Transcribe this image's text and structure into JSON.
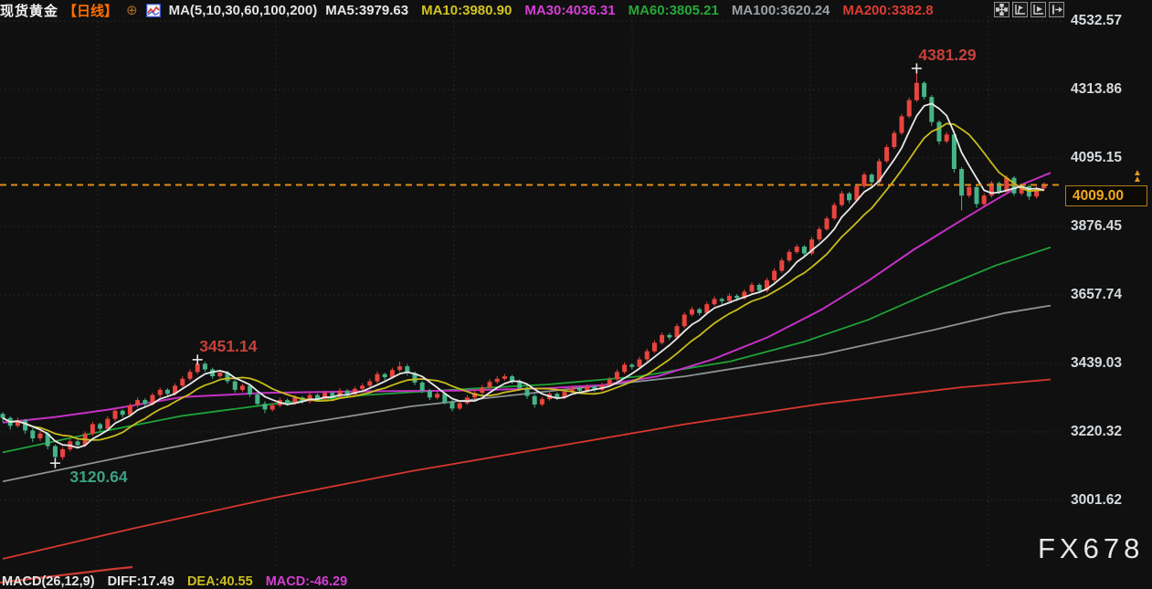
{
  "header": {
    "symbol": "现货黄金",
    "period": "【日线】",
    "ma_settings": "MA(5,10,30,60,100,200)",
    "ma_values": [
      {
        "label": "MA5:3979.63",
        "color": "#e6e6e6"
      },
      {
        "label": "MA10:3980.90",
        "color": "#d2c31f"
      },
      {
        "label": "MA30:4036.31",
        "color": "#d43fd4"
      },
      {
        "label": "MA60:3805.21",
        "color": "#27a83a"
      },
      {
        "label": "MA100:3620.24",
        "color": "#9ba1a6"
      },
      {
        "label": "MA200:3382.8",
        "color": "#da3c32"
      }
    ],
    "toolbar": [
      {
        "name": "move-tool-icon"
      },
      {
        "name": "axis-left-chart-icon"
      },
      {
        "name": "axis-play-chart-icon"
      },
      {
        "name": "exit-right-icon"
      }
    ]
  },
  "price_label": "4009.00",
  "watermark": "FX678",
  "footer": {
    "settings": "MACD(26,12,9)",
    "diff": "DIFF:17.49",
    "dea": "DEA:40.55",
    "macd": "MACD:-46.29",
    "colors": {
      "settings": "#e6e6e6",
      "diff": "#e6e6e6",
      "dea": "#cdbd23",
      "macd": "#d43fd4"
    }
  },
  "chart_data": {
    "type": "candlestick",
    "title": "现货黄金 日线 (Spot Gold Daily)",
    "y_ticks": [
      "4532.57",
      "4313.86",
      "4095.15",
      "3876.45",
      "3657.74",
      "3439.03",
      "3220.32",
      "3001.62"
    ],
    "ylim": [
      3001.62,
      4532.57
    ],
    "current_price": 4009.0,
    "current_price_text": "4009.00",
    "grid": "dotted",
    "x_start": 3,
    "x_step": 8.2,
    "colors": {
      "up": "#e8453e",
      "down": "#46b487",
      "grid": "#2c2c2c",
      "dashed": "#e08c1a",
      "ma5": "#e8e8e8",
      "ma10": "#c9ba1e",
      "ma30": "#c631c6",
      "ma60": "#1fa238",
      "ma100": "#8d9297",
      "ma200": "#d5372e"
    },
    "annotations": [
      {
        "text": "4381.29",
        "index": 122,
        "price": 4381.29,
        "color": "#c8413c",
        "placement": "above"
      },
      {
        "text": "3451.14",
        "index": 26,
        "price": 3451.14,
        "color": "#c8413c",
        "placement": "above"
      },
      {
        "text": "3120.64",
        "index": 7,
        "price": 3120.64,
        "color": "#3da084",
        "placement": "below"
      }
    ],
    "candles": [
      [
        3278,
        3284,
        3252,
        3265
      ],
      [
        3265,
        3270,
        3228,
        3240
      ],
      [
        3240,
        3266,
        3234,
        3258
      ],
      [
        3258,
        3262,
        3214,
        3225
      ],
      [
        3225,
        3232,
        3188,
        3200
      ],
      [
        3200,
        3224,
        3192,
        3215
      ],
      [
        3215,
        3220,
        3165,
        3175
      ],
      [
        3175,
        3180,
        3120.64,
        3140
      ],
      [
        3140,
        3172,
        3132,
        3165
      ],
      [
        3165,
        3198,
        3158,
        3190
      ],
      [
        3190,
        3196,
        3168,
        3178
      ],
      [
        3178,
        3222,
        3172,
        3215
      ],
      [
        3215,
        3252,
        3208,
        3245
      ],
      [
        3245,
        3250,
        3222,
        3230
      ],
      [
        3230,
        3270,
        3224,
        3262
      ],
      [
        3262,
        3295,
        3255,
        3288
      ],
      [
        3288,
        3293,
        3266,
        3275
      ],
      [
        3275,
        3312,
        3270,
        3305
      ],
      [
        3305,
        3330,
        3298,
        3322
      ],
      [
        3322,
        3328,
        3300,
        3310
      ],
      [
        3310,
        3345,
        3305,
        3338
      ],
      [
        3338,
        3362,
        3330,
        3355
      ],
      [
        3355,
        3360,
        3334,
        3342
      ],
      [
        3342,
        3375,
        3336,
        3368
      ],
      [
        3368,
        3398,
        3362,
        3390
      ],
      [
        3390,
        3420,
        3384,
        3412
      ],
      [
        3412,
        3451.14,
        3405,
        3438
      ],
      [
        3438,
        3444,
        3412,
        3420
      ],
      [
        3420,
        3426,
        3390,
        3398
      ],
      [
        3398,
        3418,
        3392,
        3410
      ],
      [
        3410,
        3415,
        3374,
        3382
      ],
      [
        3382,
        3388,
        3346,
        3355
      ],
      [
        3355,
        3374,
        3348,
        3368
      ],
      [
        3368,
        3372,
        3332,
        3340
      ],
      [
        3340,
        3346,
        3302,
        3310
      ],
      [
        3310,
        3318,
        3280,
        3292
      ],
      [
        3292,
        3312,
        3286,
        3305
      ],
      [
        3305,
        3330,
        3300,
        3322
      ],
      [
        3322,
        3327,
        3304,
        3312
      ],
      [
        3312,
        3338,
        3306,
        3330
      ],
      [
        3330,
        3335,
        3310,
        3318
      ],
      [
        3318,
        3345,
        3312,
        3338
      ],
      [
        3338,
        3343,
        3317,
        3325
      ],
      [
        3325,
        3352,
        3320,
        3345
      ],
      [
        3345,
        3350,
        3324,
        3332
      ],
      [
        3332,
        3360,
        3326,
        3352
      ],
      [
        3352,
        3357,
        3332,
        3340
      ],
      [
        3340,
        3365,
        3334,
        3358
      ],
      [
        3358,
        3376,
        3352,
        3368
      ],
      [
        3368,
        3390,
        3362,
        3382
      ],
      [
        3382,
        3413,
        3376,
        3405
      ],
      [
        3405,
        3410,
        3386,
        3395
      ],
      [
        3395,
        3426,
        3390,
        3418
      ],
      [
        3418,
        3445,
        3412,
        3430
      ],
      [
        3430,
        3436,
        3400,
        3408
      ],
      [
        3408,
        3414,
        3370,
        3378
      ],
      [
        3378,
        3384,
        3344,
        3352
      ],
      [
        3352,
        3358,
        3322,
        3330
      ],
      [
        3330,
        3350,
        3324,
        3342
      ],
      [
        3342,
        3347,
        3308,
        3315
      ],
      [
        3315,
        3322,
        3286,
        3295
      ],
      [
        3295,
        3320,
        3290,
        3312
      ],
      [
        3312,
        3338,
        3306,
        3330
      ],
      [
        3330,
        3353,
        3325,
        3345
      ],
      [
        3345,
        3370,
        3340,
        3362
      ],
      [
        3362,
        3388,
        3356,
        3380
      ],
      [
        3380,
        3398,
        3374,
        3390
      ],
      [
        3390,
        3406,
        3384,
        3398
      ],
      [
        3398,
        3403,
        3374,
        3382
      ],
      [
        3382,
        3388,
        3352,
        3360
      ],
      [
        3360,
        3366,
        3326,
        3335
      ],
      [
        3335,
        3341,
        3298,
        3308
      ],
      [
        3308,
        3332,
        3302,
        3325
      ],
      [
        3325,
        3350,
        3320,
        3342
      ],
      [
        3342,
        3347,
        3322,
        3330
      ],
      [
        3330,
        3356,
        3325,
        3348
      ],
      [
        3348,
        3368,
        3342,
        3360
      ],
      [
        3360,
        3365,
        3344,
        3352
      ],
      [
        3352,
        3372,
        3346,
        3365
      ],
      [
        3365,
        3370,
        3347,
        3355
      ],
      [
        3355,
        3378,
        3350,
        3370
      ],
      [
        3370,
        3396,
        3365,
        3388
      ],
      [
        3388,
        3420,
        3382,
        3412
      ],
      [
        3412,
        3443,
        3406,
        3435
      ],
      [
        3435,
        3440,
        3420,
        3428
      ],
      [
        3428,
        3460,
        3422,
        3452
      ],
      [
        3452,
        3486,
        3446,
        3478
      ],
      [
        3478,
        3513,
        3472,
        3505
      ],
      [
        3505,
        3538,
        3499,
        3530
      ],
      [
        3530,
        3536,
        3514,
        3522
      ],
      [
        3522,
        3566,
        3516,
        3558
      ],
      [
        3558,
        3603,
        3552,
        3595
      ],
      [
        3595,
        3620,
        3589,
        3612
      ],
      [
        3612,
        3617,
        3592,
        3600
      ],
      [
        3600,
        3636,
        3595,
        3628
      ],
      [
        3628,
        3653,
        3622,
        3645
      ],
      [
        3645,
        3650,
        3628,
        3638
      ],
      [
        3638,
        3663,
        3632,
        3655
      ],
      [
        3655,
        3660,
        3638,
        3648
      ],
      [
        3648,
        3676,
        3642,
        3668
      ],
      [
        3668,
        3698,
        3662,
        3690
      ],
      [
        3690,
        3695,
        3664,
        3672
      ],
      [
        3672,
        3713,
        3666,
        3705
      ],
      [
        3705,
        3743,
        3699,
        3735
      ],
      [
        3735,
        3776,
        3729,
        3768
      ],
      [
        3768,
        3803,
        3762,
        3795
      ],
      [
        3795,
        3820,
        3789,
        3812
      ],
      [
        3812,
        3817,
        3782,
        3790
      ],
      [
        3790,
        3843,
        3784,
        3835
      ],
      [
        3835,
        3876,
        3829,
        3868
      ],
      [
        3868,
        3910,
        3862,
        3902
      ],
      [
        3902,
        3953,
        3896,
        3945
      ],
      [
        3945,
        3990,
        3939,
        3982
      ],
      [
        3982,
        3987,
        3950,
        3960
      ],
      [
        3960,
        4013,
        3954,
        4005
      ],
      [
        4005,
        4050,
        3999,
        4042
      ],
      [
        4042,
        4047,
        4008,
        4018
      ],
      [
        4018,
        4093,
        4012,
        4085
      ],
      [
        4085,
        4138,
        4079,
        4130
      ],
      [
        4130,
        4183,
        4124,
        4175
      ],
      [
        4175,
        4236,
        4169,
        4228
      ],
      [
        4228,
        4288,
        4222,
        4280
      ],
      [
        4280,
        4381.29,
        4274,
        4335
      ],
      [
        4335,
        4340,
        4282,
        4290
      ],
      [
        4290,
        4296,
        4198,
        4210
      ],
      [
        4210,
        4216,
        4138,
        4148
      ],
      [
        4148,
        4178,
        4142,
        4170
      ],
      [
        4170,
        4176,
        4048,
        4060
      ],
      [
        4060,
        4066,
        3928,
        3975
      ],
      [
        3975,
        4010,
        3968,
        4002
      ],
      [
        4002,
        4008,
        3936,
        3948
      ],
      [
        3948,
        3982,
        3940,
        3975
      ],
      [
        3975,
        4022,
        3968,
        4015
      ],
      [
        4015,
        4020,
        3980,
        3988
      ],
      [
        3988,
        4040,
        3982,
        4032
      ],
      [
        4032,
        4037,
        3974,
        3982
      ],
      [
        3982,
        4012,
        3975,
        4005
      ],
      [
        4005,
        4010,
        3962,
        3972
      ],
      [
        3972,
        4004,
        3965,
        3998
      ],
      [
        3998,
        4018,
        3990,
        4009
      ]
    ],
    "ma_series": [
      {
        "name": "MA30",
        "color": "#c631c6",
        "anchors": [
          [
            3,
            3250
          ],
          [
            60,
            3268
          ],
          [
            120,
            3292
          ],
          [
            200,
            3332
          ],
          [
            290,
            3345
          ],
          [
            400,
            3350
          ],
          [
            500,
            3352
          ],
          [
            600,
            3360
          ],
          [
            660,
            3370
          ],
          [
            720,
            3398
          ],
          [
            780,
            3452
          ],
          [
            840,
            3522
          ],
          [
            900,
            3612
          ],
          [
            950,
            3702
          ],
          [
            1000,
            3802
          ],
          [
            1050,
            3892
          ],
          [
            1090,
            3962
          ],
          [
            1120,
            4012
          ],
          [
            1150,
            4048
          ]
        ]
      },
      {
        "name": "MA60",
        "color": "#1fa238",
        "anchors": [
          [
            3,
            3155
          ],
          [
            100,
            3215
          ],
          [
            200,
            3272
          ],
          [
            300,
            3310
          ],
          [
            400,
            3338
          ],
          [
            500,
            3356
          ],
          [
            600,
            3372
          ],
          [
            700,
            3398
          ],
          [
            800,
            3446
          ],
          [
            880,
            3508
          ],
          [
            950,
            3578
          ],
          [
            1020,
            3668
          ],
          [
            1090,
            3752
          ],
          [
            1150,
            3810
          ]
        ]
      },
      {
        "name": "MA100",
        "color": "#8d9297",
        "anchors": [
          [
            3,
            3062
          ],
          [
            150,
            3150
          ],
          [
            300,
            3232
          ],
          [
            450,
            3302
          ],
          [
            600,
            3350
          ],
          [
            750,
            3398
          ],
          [
            900,
            3468
          ],
          [
            1020,
            3545
          ],
          [
            1100,
            3600
          ],
          [
            1150,
            3624
          ]
        ]
      },
      {
        "name": "MA200",
        "color": "#d5372e",
        "anchors": [
          [
            3,
            2815
          ],
          [
            150,
            2915
          ],
          [
            300,
            3010
          ],
          [
            450,
            3095
          ],
          [
            600,
            3170
          ],
          [
            750,
            3245
          ],
          [
            900,
            3310
          ],
          [
            1050,
            3362
          ],
          [
            1150,
            3388
          ]
        ]
      }
    ]
  }
}
